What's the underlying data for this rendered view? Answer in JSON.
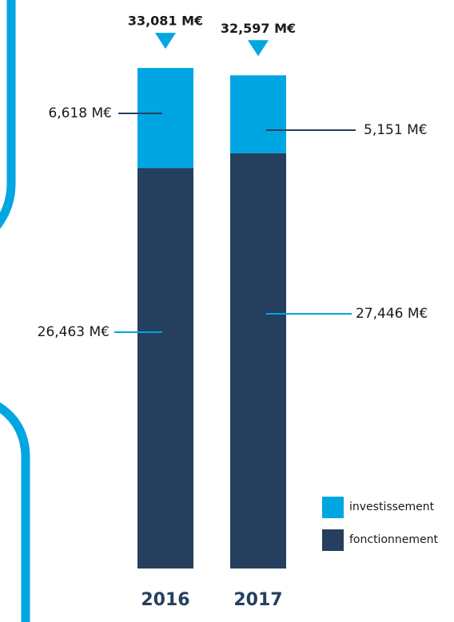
{
  "chart_data": {
    "type": "stacked-bar",
    "categories": [
      "2016",
      "2017"
    ],
    "series": [
      {
        "name": "fonctionnement",
        "color": "#253f5e",
        "values": [
          26.463,
          27.446
        ],
        "value_labels": [
          "26,463 M€",
          "27,446 M€"
        ]
      },
      {
        "name": "investissement",
        "color": "#00a6e2",
        "values": [
          6.618,
          5.151
        ],
        "value_labels": [
          "6,618 M€",
          "5,151 M€"
        ]
      }
    ],
    "totals": {
      "values": [
        33.081,
        32.597
      ],
      "value_labels": [
        "33,081 M€",
        "32,597 M€"
      ],
      "color": "#00a6e2"
    }
  }
}
